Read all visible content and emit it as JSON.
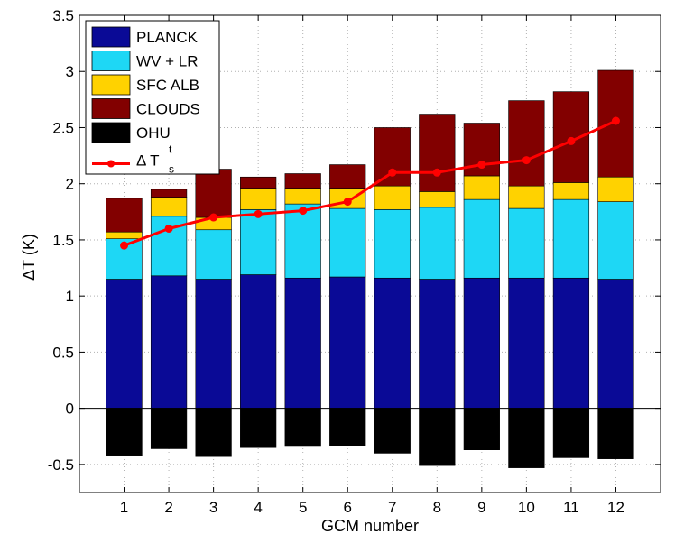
{
  "chart_data": {
    "type": "bar",
    "stacked": true,
    "xlabel": "GCM number",
    "ylabel": "ΔT (K)",
    "ylim": [
      -0.75,
      3.5
    ],
    "yticks": [
      "-0.5",
      "0",
      "0.5",
      "1",
      "1.5",
      "2",
      "2.5",
      "3",
      "3.5"
    ],
    "ytick_values": [
      -0.5,
      0,
      0.5,
      1,
      1.5,
      2,
      2.5,
      3,
      3.5
    ],
    "categories": [
      "1",
      "2",
      "3",
      "4",
      "5",
      "6",
      "7",
      "8",
      "9",
      "10",
      "11",
      "12"
    ],
    "grid": true,
    "legend_position": "top-left",
    "series": [
      {
        "name": "PLANCK",
        "color": "#0a0a96",
        "values": [
          1.15,
          1.18,
          1.15,
          1.19,
          1.16,
          1.17,
          1.16,
          1.15,
          1.16,
          1.16,
          1.16,
          1.15
        ]
      },
      {
        "name": "WV + LR",
        "color": "#1ed7f5",
        "values": [
          0.36,
          0.53,
          0.44,
          0.58,
          0.66,
          0.61,
          0.61,
          0.64,
          0.7,
          0.62,
          0.7,
          0.69
        ]
      },
      {
        "name": "SFC ALB",
        "color": "#ffd200",
        "values": [
          0.06,
          0.17,
          0.11,
          0.19,
          0.14,
          0.18,
          0.21,
          0.14,
          0.21,
          0.2,
          0.15,
          0.22
        ]
      },
      {
        "name": "CLOUDS",
        "color": "#820000",
        "values": [
          0.3,
          0.07,
          0.43,
          0.1,
          0.13,
          0.21,
          0.52,
          0.69,
          0.47,
          0.76,
          0.81,
          0.95
        ]
      },
      {
        "name": "OHU",
        "color": "#000000",
        "values": [
          -0.42,
          -0.36,
          -0.43,
          -0.35,
          -0.34,
          -0.33,
          -0.4,
          -0.51,
          -0.37,
          -0.53,
          -0.44,
          -0.45
        ]
      }
    ],
    "line_series": {
      "name": "Δ T",
      "name_sup": "t",
      "name_sub": "s",
      "color": "#ff0000",
      "values": [
        1.45,
        1.6,
        1.7,
        1.73,
        1.76,
        1.84,
        2.1,
        2.1,
        2.17,
        2.21,
        2.38,
        2.56
      ]
    }
  }
}
